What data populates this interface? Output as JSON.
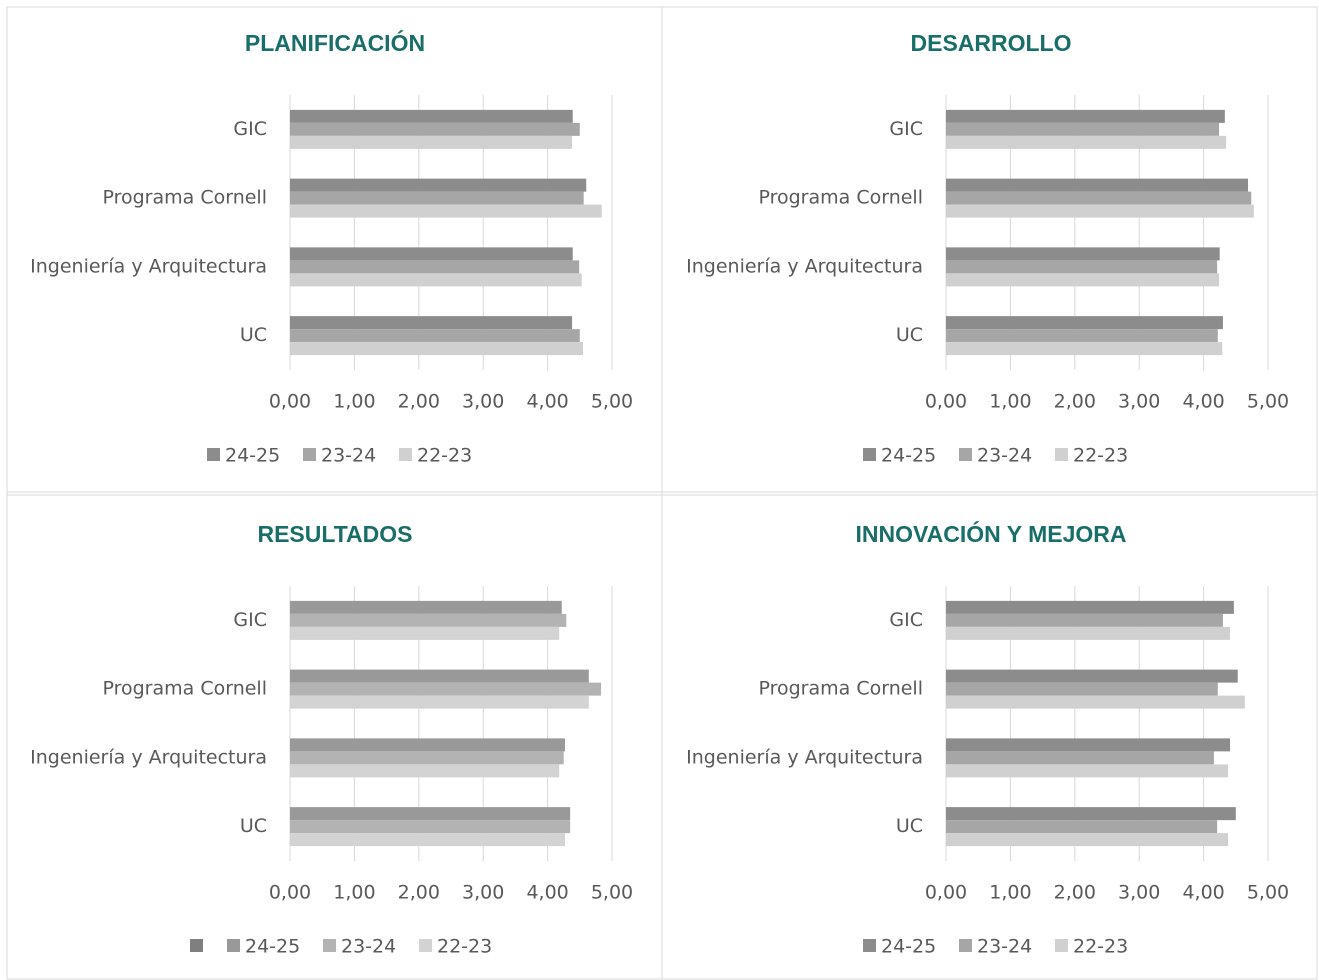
{
  "chart_data": [
    {
      "type": "bar",
      "title": "PLANIFICACIÓN",
      "categories": [
        "GIC",
        "Programa Cornell",
        "Ingeniería y Arquitectura",
        "UC"
      ],
      "series": [
        {
          "name": "24-25",
          "color": "#8c8c8c",
          "values": [
            4.39,
            4.6,
            4.39,
            4.38
          ]
        },
        {
          "name": "23-24",
          "color": "#a6a6a6",
          "values": [
            4.5,
            4.56,
            4.49,
            4.5
          ]
        },
        {
          "name": "22-23",
          "color": "#d0d0d0",
          "values": [
            4.38,
            4.84,
            4.53,
            4.55
          ]
        }
      ],
      "xlim": [
        0,
        5
      ],
      "xticks": [
        {
          "value": 0,
          "label": "0,00"
        },
        {
          "value": 1,
          "label": "1,00"
        },
        {
          "value": 2,
          "label": "2,00"
        },
        {
          "value": 3,
          "label": "3,00"
        },
        {
          "value": 4,
          "label": "4,00"
        },
        {
          "value": 5,
          "label": "5,00"
        }
      ],
      "grid": true,
      "legend": "bottom"
    },
    {
      "type": "bar",
      "title": "DESARROLLO",
      "categories": [
        "GIC",
        "Programa Cornell",
        "Ingeniería y Arquitectura",
        "UC"
      ],
      "series": [
        {
          "name": "24-25",
          "color": "#8c8c8c",
          "values": [
            4.33,
            4.69,
            4.25,
            4.3
          ]
        },
        {
          "name": "23-24",
          "color": "#a6a6a6",
          "values": [
            4.24,
            4.74,
            4.21,
            4.22
          ]
        },
        {
          "name": "22-23",
          "color": "#d0d0d0",
          "values": [
            4.35,
            4.78,
            4.24,
            4.29
          ]
        }
      ],
      "xlim": [
        0,
        5
      ],
      "xticks": [
        {
          "value": 0,
          "label": "0,00"
        },
        {
          "value": 1,
          "label": "1,00"
        },
        {
          "value": 2,
          "label": "2,00"
        },
        {
          "value": 3,
          "label": "3,00"
        },
        {
          "value": 4,
          "label": "4,00"
        },
        {
          "value": 5,
          "label": "5,00"
        }
      ],
      "grid": true,
      "legend": "bottom"
    },
    {
      "type": "bar",
      "title": "RESULTADOS",
      "categories": [
        "GIC",
        "Programa Cornell",
        "Ingeniería y Arquitectura",
        "UC"
      ],
      "series": [
        {
          "name": "24-25",
          "color": "#999999",
          "values": [
            4.22,
            4.64,
            4.27,
            4.35
          ]
        },
        {
          "name": "23-24",
          "color": "#b3b3b3",
          "values": [
            4.29,
            4.83,
            4.25,
            4.35
          ]
        },
        {
          "name": "22-23",
          "color": "#d3d3d3",
          "values": [
            4.18,
            4.64,
            4.18,
            4.27
          ]
        }
      ],
      "xlim": [
        0,
        5
      ],
      "xticks": [
        {
          "value": 0,
          "label": "0,00"
        },
        {
          "value": 1,
          "label": "1,00"
        },
        {
          "value": 2,
          "label": "2,00"
        },
        {
          "value": 3,
          "label": "3,00"
        },
        {
          "value": 4,
          "label": "4,00"
        },
        {
          "value": 5,
          "label": "5,00"
        }
      ],
      "grid": true,
      "legend": "bottom"
    },
    {
      "type": "bar",
      "title": "INNOVACIÓN Y MEJORA",
      "categories": [
        "GIC",
        "Programa Cornell",
        "Ingeniería y Arquitectura",
        "UC"
      ],
      "series": [
        {
          "name": "24-25",
          "color": "#8c8c8c",
          "values": [
            4.47,
            4.53,
            4.41,
            4.5
          ]
        },
        {
          "name": "23-24",
          "color": "#a6a6a6",
          "values": [
            4.3,
            4.22,
            4.16,
            4.21
          ]
        },
        {
          "name": "22-23",
          "color": "#d0d0d0",
          "values": [
            4.41,
            4.64,
            4.38,
            4.38
          ]
        }
      ],
      "xlim": [
        0,
        5
      ],
      "xticks": [
        {
          "value": 0,
          "label": "0,00"
        },
        {
          "value": 1,
          "label": "1,00"
        },
        {
          "value": 2,
          "label": "2,00"
        },
        {
          "value": 3,
          "label": "3,00"
        },
        {
          "value": 4,
          "label": "4,00"
        },
        {
          "value": 5,
          "label": "5,00"
        }
      ],
      "grid": true,
      "legend": "bottom"
    }
  ]
}
